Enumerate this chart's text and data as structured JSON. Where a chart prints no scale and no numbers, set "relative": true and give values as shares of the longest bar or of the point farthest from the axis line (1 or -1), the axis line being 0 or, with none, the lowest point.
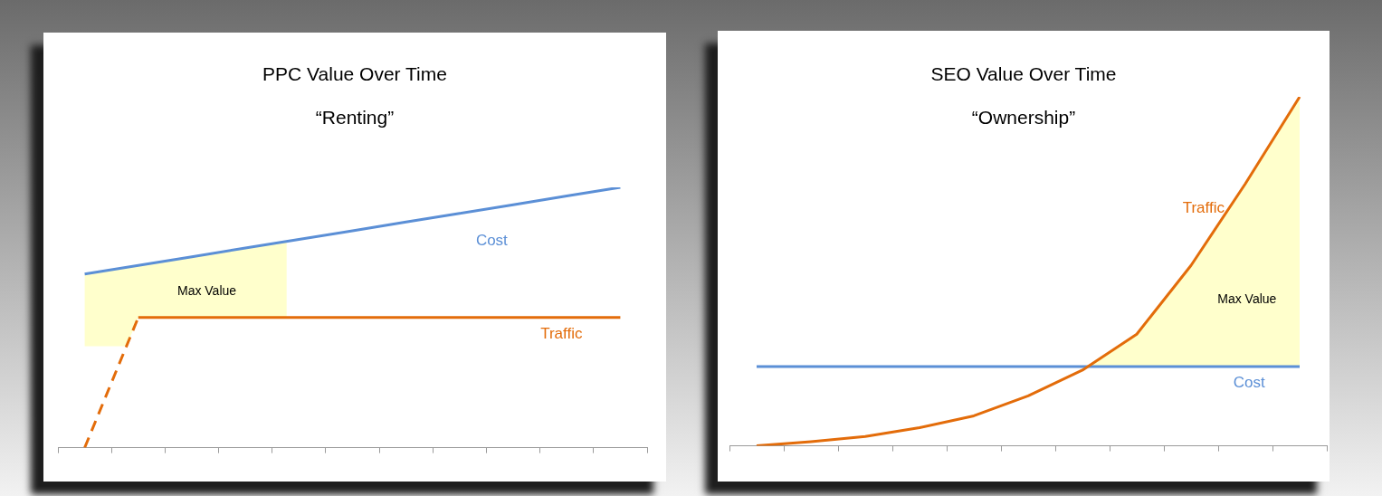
{
  "chart_data": [
    {
      "type": "line",
      "title": "PPC Value Over Time",
      "subtitle": "“Renting”",
      "relative": true,
      "legend": false,
      "grid": false,
      "marker": "none",
      "categories": [
        null,
        null,
        null,
        null,
        null,
        null,
        null,
        null,
        null,
        null,
        null
      ],
      "series": [
        {
          "name": "Cost",
          "color": "#5b8fd6",
          "values": [
            0.667,
            0.7,
            0.733,
            0.767,
            0.8,
            0.833,
            0.867,
            0.9,
            0.933,
            0.967,
            1
          ]
        },
        {
          "name": "Traffic",
          "color": "#e36c0a",
          "values": [
            null,
            0.5,
            0.5,
            0.5,
            0.5,
            0.5,
            0.5,
            0.5,
            0.5,
            0.5,
            0.5
          ]
        },
        {
          "color": "#e36c0a",
          "line_style": "dashed",
          "values": [
            0,
            0.5,
            null,
            null,
            null,
            null,
            null,
            null,
            null,
            null,
            null
          ]
        }
      ],
      "annotations": [
        "Max Value"
      ]
    },
    {
      "type": "line",
      "title": "SEO Value Over Time",
      "subtitle": "“Ownership”",
      "relative": true,
      "legend": false,
      "grid": false,
      "marker": "none",
      "categories": [
        null,
        null,
        null,
        null,
        null,
        null,
        null,
        null,
        null,
        null,
        null
      ],
      "series": [
        {
          "name": "Traffic",
          "color": "#e36c0a",
          "values": [
            0,
            0.012,
            0.027,
            0.052,
            0.086,
            0.143,
            0.217,
            0.32,
            0.517,
            0.751,
            1
          ]
        },
        {
          "name": "Cost",
          "color": "#5b8fd6",
          "values": [
            0.227,
            0.227,
            0.227,
            0.227,
            0.227,
            0.227,
            0.227,
            0.227,
            0.227,
            0.227,
            0.227
          ]
        }
      ],
      "annotations": [
        "Max Value"
      ]
    }
  ]
}
